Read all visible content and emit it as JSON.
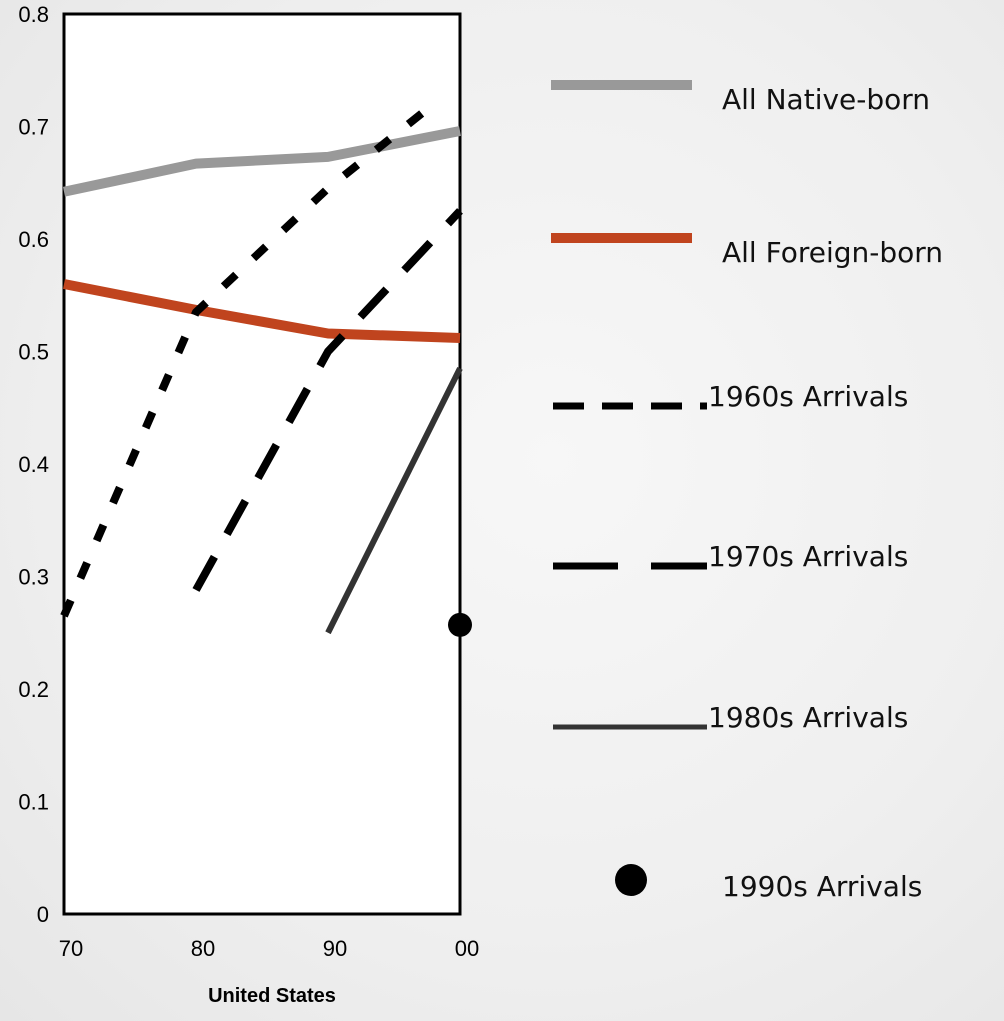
{
  "chart_data": {
    "type": "line",
    "title": "",
    "xlabel": "United States",
    "ylabel": "",
    "x": [
      1970,
      1980,
      1990,
      2000
    ],
    "x_tick_labels": [
      "70",
      "80",
      "90",
      "00"
    ],
    "ylim": [
      0,
      0.8
    ],
    "y_ticks": [
      0,
      0.1,
      0.2,
      0.3,
      0.4,
      0.5,
      0.6,
      0.7,
      0.8
    ],
    "y_tick_labels": [
      "0",
      "0.1",
      "0.2",
      "0.3",
      "0.4",
      "0.5",
      "0.6",
      "0.7",
      "0.8"
    ],
    "grid": false,
    "legend_position": "right",
    "series": [
      {
        "name": "All Native-born",
        "color": "#999999",
        "style": "solid-thick",
        "points": [
          [
            1970,
            0.642
          ],
          [
            1980,
            0.667
          ],
          [
            1990,
            0.673
          ],
          [
            2000,
            0.696
          ]
        ]
      },
      {
        "name": "All Foreign-born",
        "color": "#c0441e",
        "style": "solid-thick",
        "points": [
          [
            1970,
            0.56
          ],
          [
            1980,
            0.537
          ],
          [
            1990,
            0.516
          ],
          [
            2000,
            0.512
          ]
        ]
      },
      {
        "name": "1960s Arrivals",
        "color": "#000000",
        "style": "short-dash",
        "points": [
          [
            1970,
            0.265
          ],
          [
            1980,
            0.535
          ],
          [
            1990,
            0.645
          ],
          [
            1998,
            0.72
          ]
        ]
      },
      {
        "name": "1970s Arrivals",
        "color": "#000000",
        "style": "long-dash",
        "points": [
          [
            1980,
            0.288
          ],
          [
            1990,
            0.5
          ],
          [
            2000,
            0.625
          ]
        ]
      },
      {
        "name": "1980s Arrivals",
        "color": "#333333",
        "style": "solid",
        "points": [
          [
            1990,
            0.25
          ],
          [
            2000,
            0.485
          ]
        ]
      },
      {
        "name": "1990s Arrivals",
        "color": "#000000",
        "style": "marker",
        "points": [
          [
            2000,
            0.257
          ]
        ]
      }
    ]
  }
}
